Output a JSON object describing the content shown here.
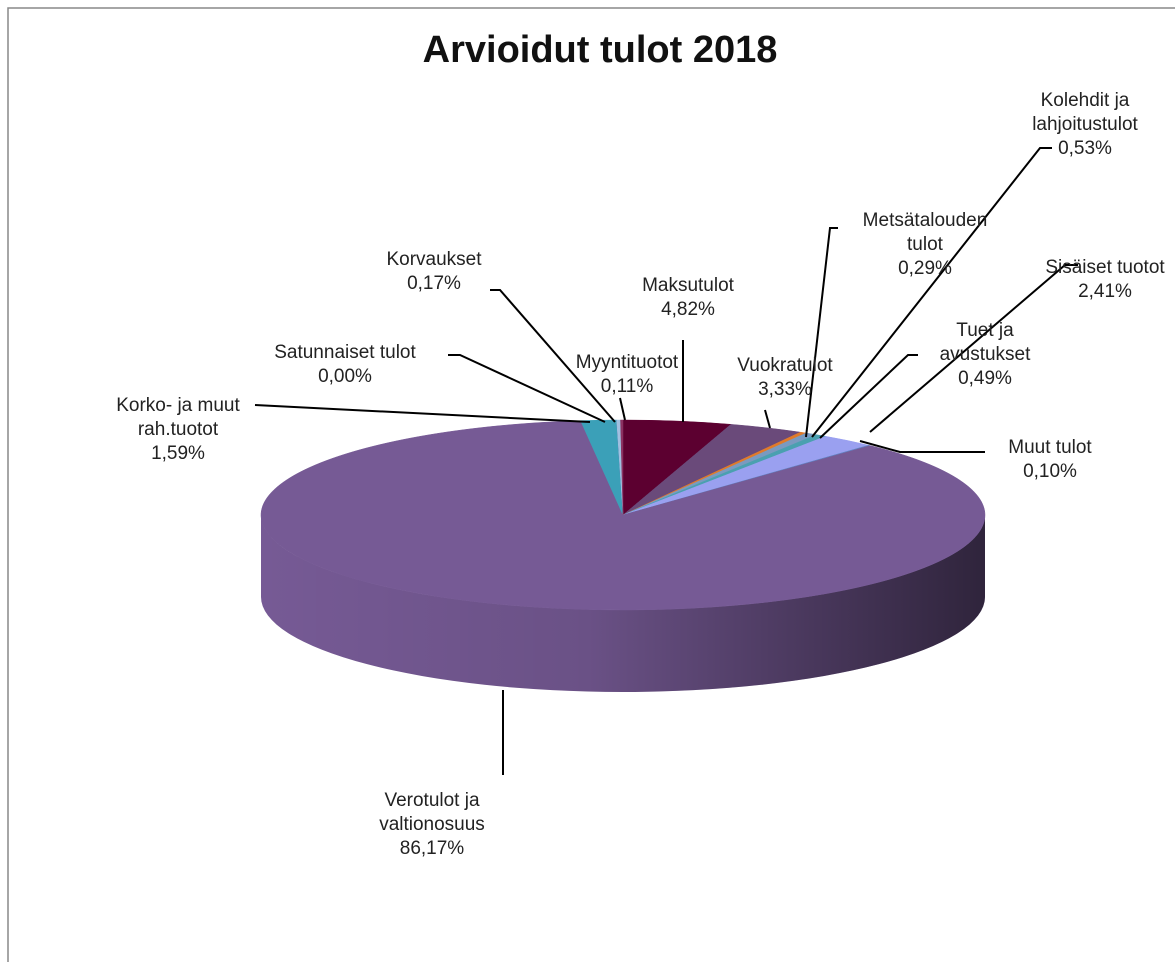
{
  "chart_data": {
    "type": "pie",
    "title": "Arvioidut tulot 2018",
    "categories": [
      "Maksutulot",
      "Vuokratulot",
      "Metsätalouden tulot",
      "Kolehdit ja lahjoitustulot",
      "Tuet ja avustukset",
      "Sisäiset tuotot",
      "Muut tulot",
      "Verotulot ja valtionosuus",
      "Korko- ja muut rah.tuotot",
      "Satunnaiset tulot",
      "Korvaukset",
      "Myyntituotot"
    ],
    "values": [
      4.82,
      3.33,
      0.29,
      0.53,
      0.49,
      2.41,
      0.1,
      86.17,
      1.59,
      0.0,
      0.17,
      0.11
    ],
    "value_labels": [
      "4,82%",
      "3,33%",
      "0,29%",
      "0,53%",
      "0,49%",
      "2,41%",
      "0,10%",
      "86,17%",
      "1,59%",
      "0,00%",
      "0,17%",
      "0,11%"
    ],
    "colors": [
      "#5c0030",
      "#6a4a7a",
      "#e07a2a",
      "#7a9ac0",
      "#4aa0b0",
      "#9aa0f0",
      "#6080c0",
      "#765a95",
      "#3ba0b8",
      "#4060a0",
      "#a0c0e0",
      "#8a3060"
    ]
  }
}
